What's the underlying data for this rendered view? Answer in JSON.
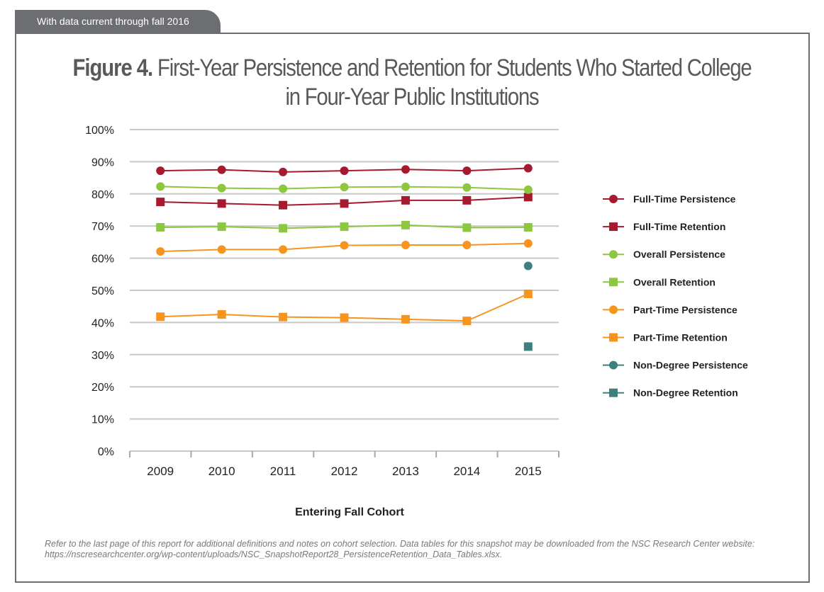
{
  "banner": "With data current through fall 2016",
  "title_prefix": "Figure 4.",
  "title_line1": "First-Year Persistence and Retention for Students Who Started College",
  "title_line2": "in Four-Year Public Institutions",
  "note": "Refer to the last page of this report for additional definitions and notes on cohort selection. Data tables for this snapshot may be downloaded from the NSC Research Center website: https://nscresearchcenter.org/wp-content/uploads/NSC_SnapshotReport28_PersistenceRetention_Data_Tables.xlsx.",
  "chart_data": {
    "type": "line",
    "xlabel": "Entering Fall Cohort",
    "ylabel": "",
    "categories": [
      "2009",
      "2010",
      "2011",
      "2012",
      "2013",
      "2014",
      "2015"
    ],
    "ylim": [
      0,
      100
    ],
    "y_ticks": [
      "0%",
      "10%",
      "20%",
      "30%",
      "40%",
      "50%",
      "60%",
      "70%",
      "80%",
      "90%",
      "100%"
    ],
    "grid": true,
    "legend_position": "right",
    "series": [
      {
        "name": "Full-Time Persistence",
        "marker": "circle",
        "color": "#a6192e",
        "values": [
          87.2,
          87.5,
          86.8,
          87.2,
          87.6,
          87.2,
          88.0
        ]
      },
      {
        "name": "Full-Time Retention",
        "marker": "square",
        "color": "#a6192e",
        "values": [
          77.5,
          77.0,
          76.5,
          77.0,
          78.0,
          78.0,
          79.0
        ]
      },
      {
        "name": "Overall Persistence",
        "marker": "circle",
        "color": "#8dc63f",
        "values": [
          82.3,
          81.8,
          81.6,
          82.1,
          82.2,
          82.0,
          81.3
        ]
      },
      {
        "name": "Overall Retention",
        "marker": "square",
        "color": "#8dc63f",
        "values": [
          69.6,
          69.8,
          69.3,
          69.8,
          70.3,
          69.5,
          69.6
        ]
      },
      {
        "name": "Part-Time Persistence",
        "marker": "circle",
        "color": "#f7941d",
        "values": [
          62.1,
          62.7,
          62.7,
          64.0,
          64.1,
          64.1,
          64.6
        ]
      },
      {
        "name": "Part-Time Retention",
        "marker": "square",
        "color": "#f7941d",
        "values": [
          41.8,
          42.5,
          41.7,
          41.5,
          41.0,
          40.5,
          48.9
        ]
      },
      {
        "name": "Non-Degree Persistence",
        "marker": "circle",
        "color": "#3f7f7f",
        "values": [
          null,
          null,
          null,
          null,
          null,
          null,
          57.6
        ]
      },
      {
        "name": "Non-Degree Retention",
        "marker": "square",
        "color": "#3f7f7f",
        "values": [
          null,
          null,
          null,
          null,
          null,
          null,
          32.5
        ]
      }
    ]
  }
}
